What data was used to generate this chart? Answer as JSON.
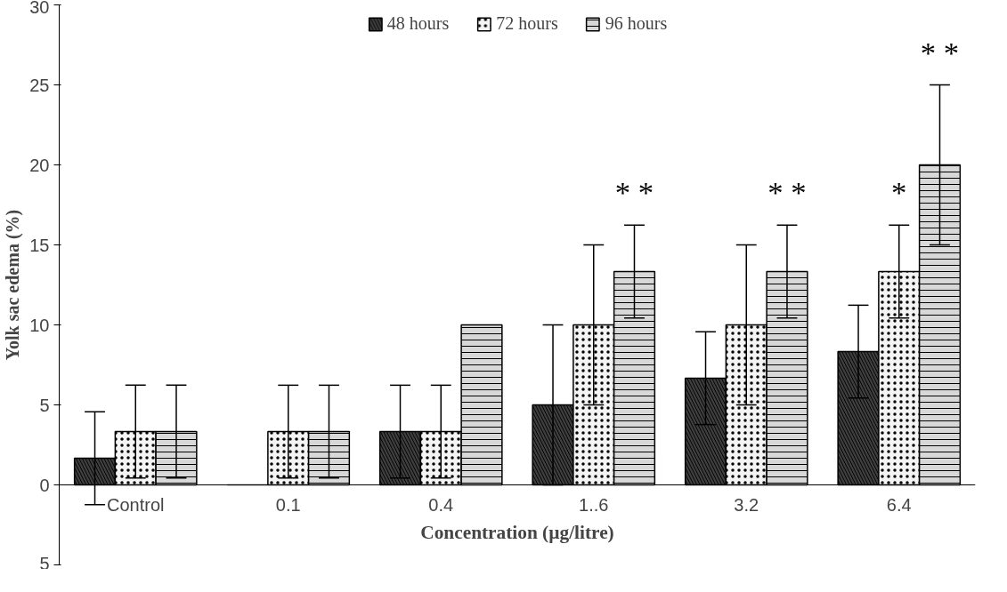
{
  "chart_data": {
    "type": "bar",
    "xlabel": "Concentration (µg/litre)",
    "ylabel": "Yolk sac edema (%)",
    "categories": [
      "Control",
      "0.1",
      "0.4",
      "1..6",
      "3.2",
      "6.4"
    ],
    "series": [
      {
        "name": "48 hours",
        "color": "#404040",
        "values": [
          1.67,
          0,
          3.33,
          5,
          6.67,
          8.33
        ],
        "errors": [
          2.9,
          null,
          2.9,
          5,
          2.9,
          2.9
        ]
      },
      {
        "name": "72 hours",
        "color": "#f4f4f4",
        "values": [
          3.33,
          3.33,
          3.33,
          10,
          10,
          13.33
        ],
        "errors": [
          2.9,
          2.9,
          2.9,
          5,
          5,
          2.9
        ]
      },
      {
        "name": "96 hours",
        "color": "#d8d8d8",
        "values": [
          3.33,
          3.33,
          10,
          13.33,
          13.33,
          20
        ],
        "errors": [
          2.9,
          2.9,
          null,
          2.9,
          2.9,
          5
        ]
      }
    ],
    "ylim": [
      -5,
      30
    ],
    "yticks": [
      {
        "value": -5,
        "label": "5"
      },
      0,
      5,
      10,
      15,
      20,
      25,
      30
    ],
    "annotations": [
      "* *",
      "* *",
      "*",
      "* *"
    ],
    "legend": "top",
    "grid": false
  }
}
